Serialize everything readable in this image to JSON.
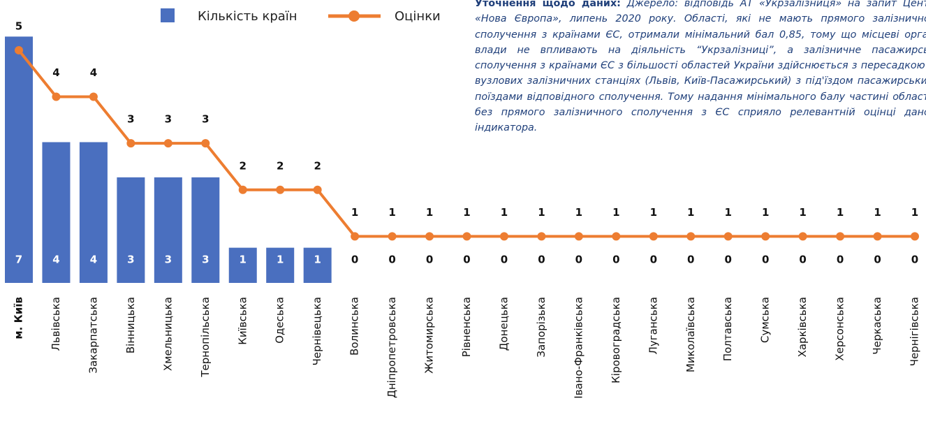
{
  "chart_data": {
    "type": "bar-line",
    "categories": [
      "м. Київ",
      "Львівська",
      "Закарпатська",
      "Вінницька",
      "Хмельницька",
      "Тернопільська",
      "Київська",
      "Одеська",
      "Чернівецька",
      "Волинська",
      "Дніпропетровська",
      "Житомирська",
      "Рівненська",
      "Донецька",
      "Запорізька",
      "Івано-Франківська",
      "Кіровоградська",
      "Луганська",
      "Миколаївська",
      "Полтавська",
      "Сумська",
      "Харківська",
      "Херсонська",
      "Черкаська",
      "Чернігівська"
    ],
    "series": [
      {
        "name": "Кількість країн",
        "type": "bar",
        "color": "#4a6fbf",
        "values": [
          7,
          4,
          4,
          3,
          3,
          3,
          1,
          1,
          1,
          0,
          0,
          0,
          0,
          0,
          0,
          0,
          0,
          0,
          0,
          0,
          0,
          0,
          0,
          0,
          0
        ]
      },
      {
        "name": "Оцінки",
        "type": "line",
        "axis": "y2",
        "color": "#ed7d31",
        "values": [
          5,
          4,
          4,
          3,
          3,
          3,
          2,
          2,
          2,
          1,
          1,
          1,
          1,
          1,
          1,
          1,
          1,
          1,
          1,
          1,
          1,
          1,
          1,
          1,
          1
        ]
      }
    ],
    "ylim": [
      0,
      8
    ],
    "y2lim": [
      0,
      6.05
    ],
    "note_title": "Уточнення щодо даних:",
    "note": "Джерело: відповідь АТ «Укрзалізниця» на запит Центру «Нова Європа», липень 2020 року. Області, які не мають прямого залізничного сполучення з країнами ЄС, отримали мінімальний бал 0,85, тому що місцеві органи влади не впливають на діяльність “Укрзалізниці”, а залізничне пасажирське сполучення з країнами ЄС з більшості областей України здійснюється з пересадкою на вузлових залізничних станціях (Львів, Київ-Пасажирський) з під'їздом пасажирськими поїздами відповідного сполучення. Тому надання мінімального балу частині областей без прямого залізничного сполучення з ЄС сприяло релевантній оцінці даного індикатора."
  }
}
